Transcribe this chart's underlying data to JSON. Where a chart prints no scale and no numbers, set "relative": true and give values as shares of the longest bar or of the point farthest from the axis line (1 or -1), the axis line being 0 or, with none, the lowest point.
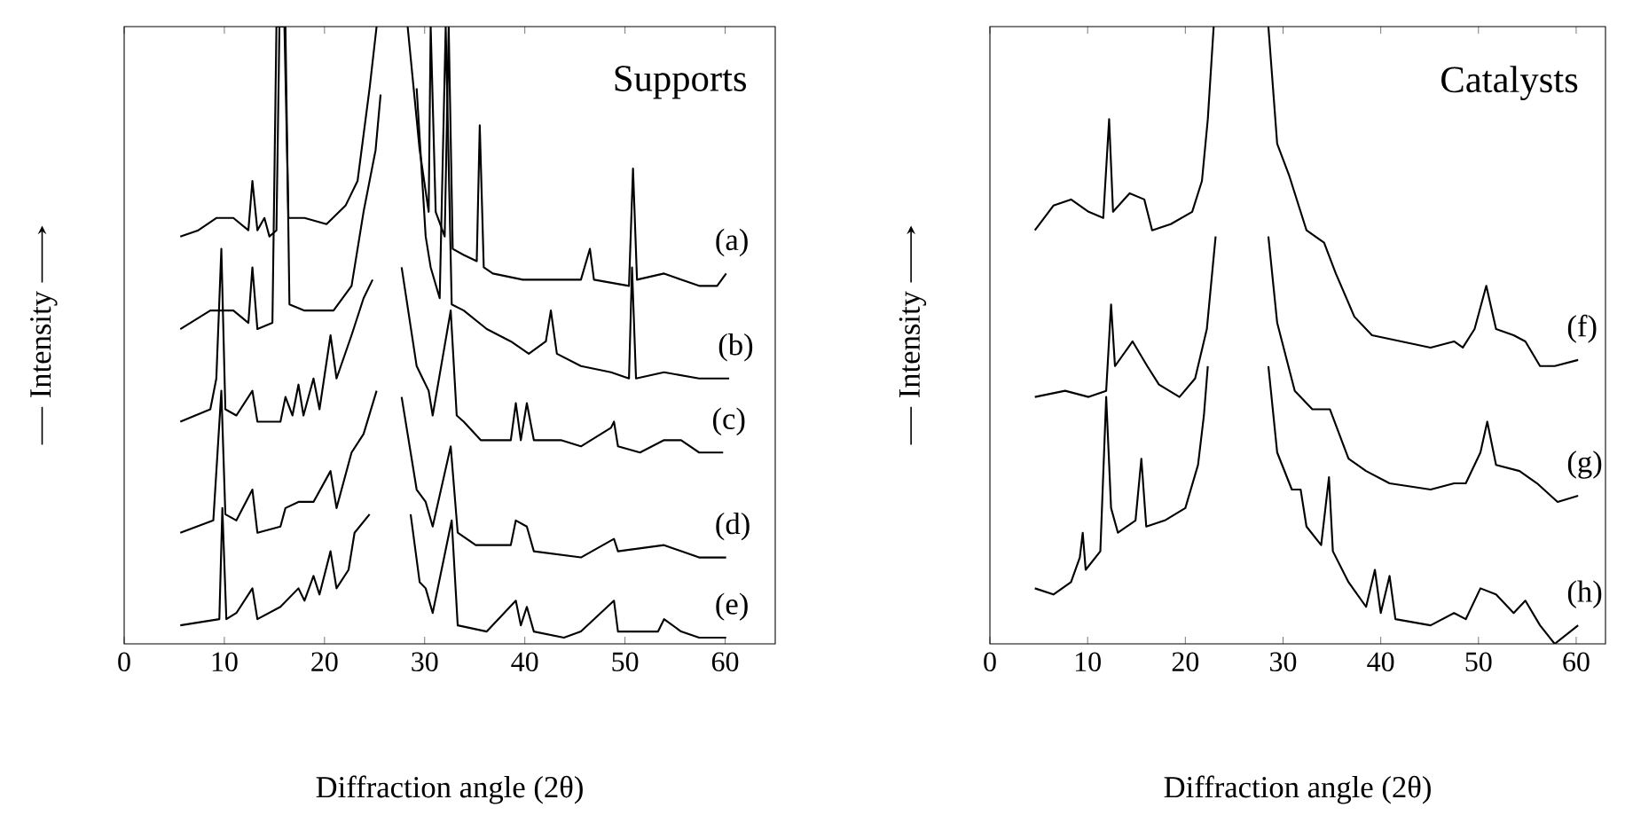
{
  "chart_data": [
    {
      "type": "line",
      "relative": true,
      "xlabel": "Diffraction angle (2θ)",
      "ylabel": "Intensity",
      "annotations": [
        "Supports"
      ],
      "xlim": [
        0,
        65
      ],
      "xticks": [
        0,
        10,
        20,
        30,
        40,
        50,
        60
      ],
      "series": [
        {
          "name": "(a)",
          "color": "#000000",
          "x": [
            5.6,
            7.4,
            9.2,
            10.9,
            12.4,
            12.8,
            13.3,
            14.0,
            14.5,
            15.2,
            15.5,
            16.0,
            16.4,
            18.0,
            20.2,
            22.1,
            23.3,
            24.5,
            25.2,
            26.5,
            28.3,
            29.5,
            30.4,
            30.6,
            31.1,
            32.0,
            32.4,
            32.8,
            33.9,
            35.2,
            35.5,
            35.9,
            36.8,
            39.8,
            45.6,
            46.5,
            46.9,
            50.4,
            50.8,
            51.2,
            53.9,
            55.6,
            57.4,
            59.2,
            60.1
          ],
          "values": [
            0.66,
            0.67,
            0.69,
            0.69,
            0.67,
            0.75,
            0.67,
            0.69,
            0.66,
            0.67,
            1.0,
            1.0,
            0.69,
            0.69,
            0.68,
            0.71,
            0.75,
            0.9,
            1.0,
            null,
            1.0,
            0.8,
            0.7,
            1.0,
            0.7,
            0.66,
            1.0,
            0.64,
            0.63,
            0.62,
            0.84,
            0.61,
            0.6,
            0.59,
            0.59,
            0.64,
            0.59,
            0.58,
            0.77,
            0.59,
            0.6,
            0.59,
            0.58,
            0.58,
            0.6
          ]
        },
        {
          "name": "(b)",
          "color": "#000000",
          "x": [
            5.6,
            8.6,
            10.9,
            12.4,
            12.8,
            13.3,
            14.8,
            15.2,
            16.1,
            16.5,
            18.0,
            20.9,
            22.7,
            23.9,
            25.1,
            25.6,
            27.0,
            29.2,
            30.1,
            30.6,
            31.5,
            32.1,
            32.7,
            33.9,
            36.2,
            38.6,
            40.4,
            42.1,
            42.6,
            43.2,
            45.6,
            48.6,
            50.4,
            50.7,
            51.1,
            53.9,
            57.4,
            60.4
          ],
          "values": [
            0.51,
            0.54,
            0.54,
            0.52,
            0.61,
            0.51,
            0.52,
            1.0,
            1.0,
            0.55,
            0.54,
            0.54,
            0.58,
            0.7,
            0.8,
            0.89,
            null,
            0.9,
            0.66,
            0.61,
            0.56,
            1.0,
            0.55,
            0.54,
            0.51,
            0.49,
            0.47,
            0.49,
            0.54,
            0.47,
            0.45,
            0.44,
            0.43,
            0.61,
            0.43,
            0.44,
            0.43,
            0.43
          ]
        },
        {
          "name": "(c)",
          "color": "#000000",
          "x": [
            5.6,
            8.6,
            9.2,
            9.7,
            10.1,
            11.2,
            12.8,
            13.3,
            15.6,
            16.1,
            16.8,
            17.4,
            17.9,
            18.9,
            19.5,
            20.6,
            21.2,
            22.7,
            23.9,
            24.8,
            26.2,
            27.7,
            29.2,
            29.8,
            30.4,
            30.8,
            32.6,
            33.2,
            33.9,
            35.6,
            38.6,
            39.1,
            39.6,
            40.2,
            40.9,
            43.6,
            45.6,
            48.6,
            48.9,
            49.3,
            51.5,
            53.9,
            55.6,
            57.4,
            59.8
          ],
          "values": [
            0.36,
            0.38,
            0.43,
            0.64,
            0.38,
            0.37,
            0.41,
            0.36,
            0.36,
            0.4,
            0.37,
            0.42,
            0.37,
            0.43,
            0.38,
            0.5,
            0.43,
            0.5,
            0.56,
            0.59,
            null,
            0.61,
            0.45,
            0.43,
            0.41,
            0.37,
            0.54,
            0.37,
            0.36,
            0.33,
            0.33,
            0.39,
            0.33,
            0.39,
            0.33,
            0.33,
            0.32,
            0.35,
            0.36,
            0.32,
            0.31,
            0.33,
            0.33,
            0.31,
            0.31
          ]
        },
        {
          "name": "(d)",
          "color": "#000000",
          "x": [
            5.6,
            8.9,
            9.7,
            10.1,
            11.2,
            12.8,
            13.3,
            15.6,
            16.1,
            17.4,
            18.9,
            20.6,
            21.2,
            22.7,
            23.9,
            25.2,
            26.4,
            27.7,
            29.2,
            30.1,
            30.8,
            32.6,
            33.3,
            35.1,
            38.6,
            39.1,
            40.2,
            40.9,
            45.6,
            48.9,
            49.3,
            53.9,
            57.4,
            60.1
          ],
          "values": [
            0.18,
            0.2,
            0.41,
            0.21,
            0.2,
            0.25,
            0.18,
            0.19,
            0.22,
            0.23,
            0.23,
            0.28,
            0.22,
            0.31,
            0.34,
            0.41,
            null,
            0.4,
            0.25,
            0.23,
            0.19,
            0.32,
            0.18,
            0.16,
            0.16,
            0.2,
            0.19,
            0.15,
            0.14,
            0.17,
            0.15,
            0.16,
            0.14,
            0.14
          ]
        },
        {
          "name": "(e)",
          "color": "#000000",
          "x": [
            5.6,
            9.5,
            9.8,
            10.2,
            11.2,
            12.8,
            13.3,
            15.6,
            17.4,
            18.0,
            18.9,
            19.5,
            20.6,
            21.2,
            22.4,
            23.0,
            24.5,
            26.0,
            28.6,
            29.5,
            30.1,
            30.8,
            32.7,
            33.3,
            36.2,
            39.1,
            39.6,
            40.2,
            40.9,
            43.9,
            45.6,
            48.9,
            49.3,
            53.3,
            53.9,
            55.6,
            57.4,
            60.1
          ],
          "values": [
            0.03,
            0.04,
            0.22,
            0.04,
            0.05,
            0.09,
            0.04,
            0.06,
            0.09,
            0.07,
            0.11,
            0.08,
            0.15,
            0.09,
            0.12,
            0.18,
            0.21,
            null,
            0.21,
            0.1,
            0.09,
            0.05,
            0.2,
            0.03,
            0.02,
            0.07,
            0.03,
            0.06,
            0.02,
            0.01,
            0.02,
            0.07,
            0.02,
            0.02,
            0.04,
            0.02,
            0.01,
            0.01
          ]
        }
      ]
    },
    {
      "type": "line",
      "relative": true,
      "xlabel": "Diffraction angle (2θ)",
      "ylabel": "Intensity",
      "annotations": [
        "Catalysts"
      ],
      "xlim": [
        0,
        63
      ],
      "xticks": [
        0,
        10,
        20,
        30,
        40,
        50,
        60
      ],
      "series": [
        {
          "name": "(f)",
          "color": "#000000",
          "x": [
            4.6,
            6.5,
            8.3,
            10.1,
            11.6,
            12.2,
            12.6,
            14.3,
            15.8,
            16.6,
            18.5,
            20.7,
            21.7,
            22.3,
            22.9,
            25.7,
            28.5,
            29.4,
            30.6,
            32.4,
            34.2,
            35.4,
            37.3,
            39.1,
            42.1,
            45.1,
            47.5,
            48.4,
            49.6,
            50.8,
            51.8,
            53.6,
            54.8,
            56.3,
            57.8,
            60.2
          ],
          "values": [
            0.67,
            0.71,
            0.72,
            0.7,
            0.69,
            0.85,
            0.7,
            0.73,
            0.72,
            0.67,
            0.68,
            0.7,
            0.75,
            0.85,
            1.0,
            null,
            1.0,
            0.81,
            0.76,
            0.67,
            0.65,
            0.6,
            0.53,
            0.5,
            0.49,
            0.48,
            0.49,
            0.48,
            0.51,
            0.58,
            0.51,
            0.5,
            0.49,
            0.45,
            0.45,
            0.46
          ]
        },
        {
          "name": "(g)",
          "color": "#000000",
          "x": [
            4.6,
            7.7,
            10.1,
            11.9,
            12.4,
            12.8,
            14.6,
            16.1,
            17.3,
            19.4,
            21.0,
            22.2,
            22.8,
            23.1,
            25.8,
            28.5,
            29.4,
            31.2,
            33.0,
            34.8,
            36.7,
            38.5,
            40.9,
            45.1,
            47.5,
            48.7,
            50.2,
            50.9,
            51.8,
            54.2,
            56.0,
            58.1,
            60.2
          ],
          "values": [
            0.4,
            0.41,
            0.4,
            0.41,
            0.55,
            0.45,
            0.49,
            0.45,
            0.42,
            0.4,
            0.43,
            0.51,
            0.61,
            0.66,
            null,
            0.66,
            0.52,
            0.41,
            0.38,
            0.38,
            0.3,
            0.28,
            0.26,
            0.25,
            0.26,
            0.26,
            0.31,
            0.36,
            0.29,
            0.28,
            0.26,
            0.23,
            0.24
          ]
        },
        {
          "name": "(h)",
          "color": "#000000",
          "x": [
            4.6,
            6.5,
            8.3,
            9.2,
            9.5,
            9.8,
            11.3,
            11.9,
            12.4,
            13.1,
            14.9,
            15.5,
            16.0,
            17.9,
            20.0,
            21.3,
            21.9,
            22.3,
            25.4,
            28.5,
            29.4,
            30.9,
            31.8,
            32.4,
            33.9,
            34.7,
            35.1,
            36.7,
            38.5,
            39.4,
            40.0,
            40.9,
            41.5,
            45.1,
            47.5,
            48.7,
            50.2,
            51.8,
            53.6,
            54.8,
            56.3,
            57.8,
            60.2
          ],
          "values": [
            0.09,
            0.08,
            0.1,
            0.14,
            0.18,
            0.12,
            0.15,
            0.4,
            0.22,
            0.18,
            0.2,
            0.3,
            0.19,
            0.2,
            0.22,
            0.29,
            0.37,
            0.45,
            null,
            0.45,
            0.31,
            0.25,
            0.25,
            0.19,
            0.16,
            0.27,
            0.15,
            0.1,
            0.06,
            0.12,
            0.05,
            0.11,
            0.04,
            0.03,
            0.05,
            0.04,
            0.09,
            0.08,
            0.05,
            0.07,
            0.03,
            0.0,
            0.03
          ]
        }
      ]
    }
  ]
}
